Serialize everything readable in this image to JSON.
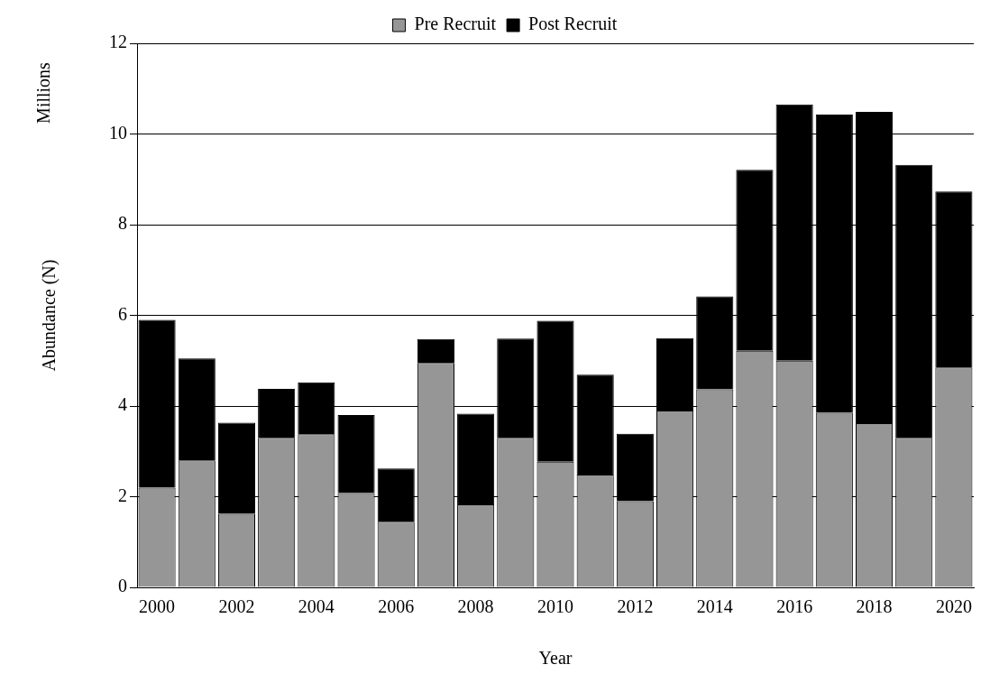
{
  "chart_data": {
    "type": "bar",
    "stacked": true,
    "xlabel": "Year",
    "ylabel": "Abundance (N)",
    "annotations": [
      "Millions"
    ],
    "categories": [
      "2000",
      null,
      "2002",
      null,
      "2004",
      null,
      "2006",
      null,
      "2008",
      null,
      "2010",
      null,
      "2012",
      null,
      "2014",
      null,
      "2016",
      null,
      "2018",
      null,
      "2020"
    ],
    "series": [
      {
        "name": "Pre Recruit",
        "color": "#969696",
        "values": [
          2.2,
          2.8,
          1.62,
          3.3,
          3.38,
          2.08,
          1.45,
          4.95,
          1.83,
          3.3,
          2.77,
          2.49,
          1.9,
          3.9,
          4.37,
          5.22,
          5.0,
          3.85,
          3.62,
          3.3,
          4.85
        ]
      },
      {
        "name": "Post Recruit",
        "color": "#000000",
        "values": [
          3.7,
          2.25,
          2.01,
          1.08,
          1.14,
          1.72,
          1.17,
          0.53,
          2.0,
          2.19,
          3.11,
          2.2,
          1.49,
          1.6,
          2.05,
          3.99,
          5.65,
          6.58,
          6.87,
          6.02,
          3.88
        ]
      }
    ],
    "ylim": [
      0,
      12
    ],
    "yticks": [
      0,
      2,
      4,
      6,
      8,
      10,
      12
    ],
    "grid": "y",
    "legend": "top"
  }
}
